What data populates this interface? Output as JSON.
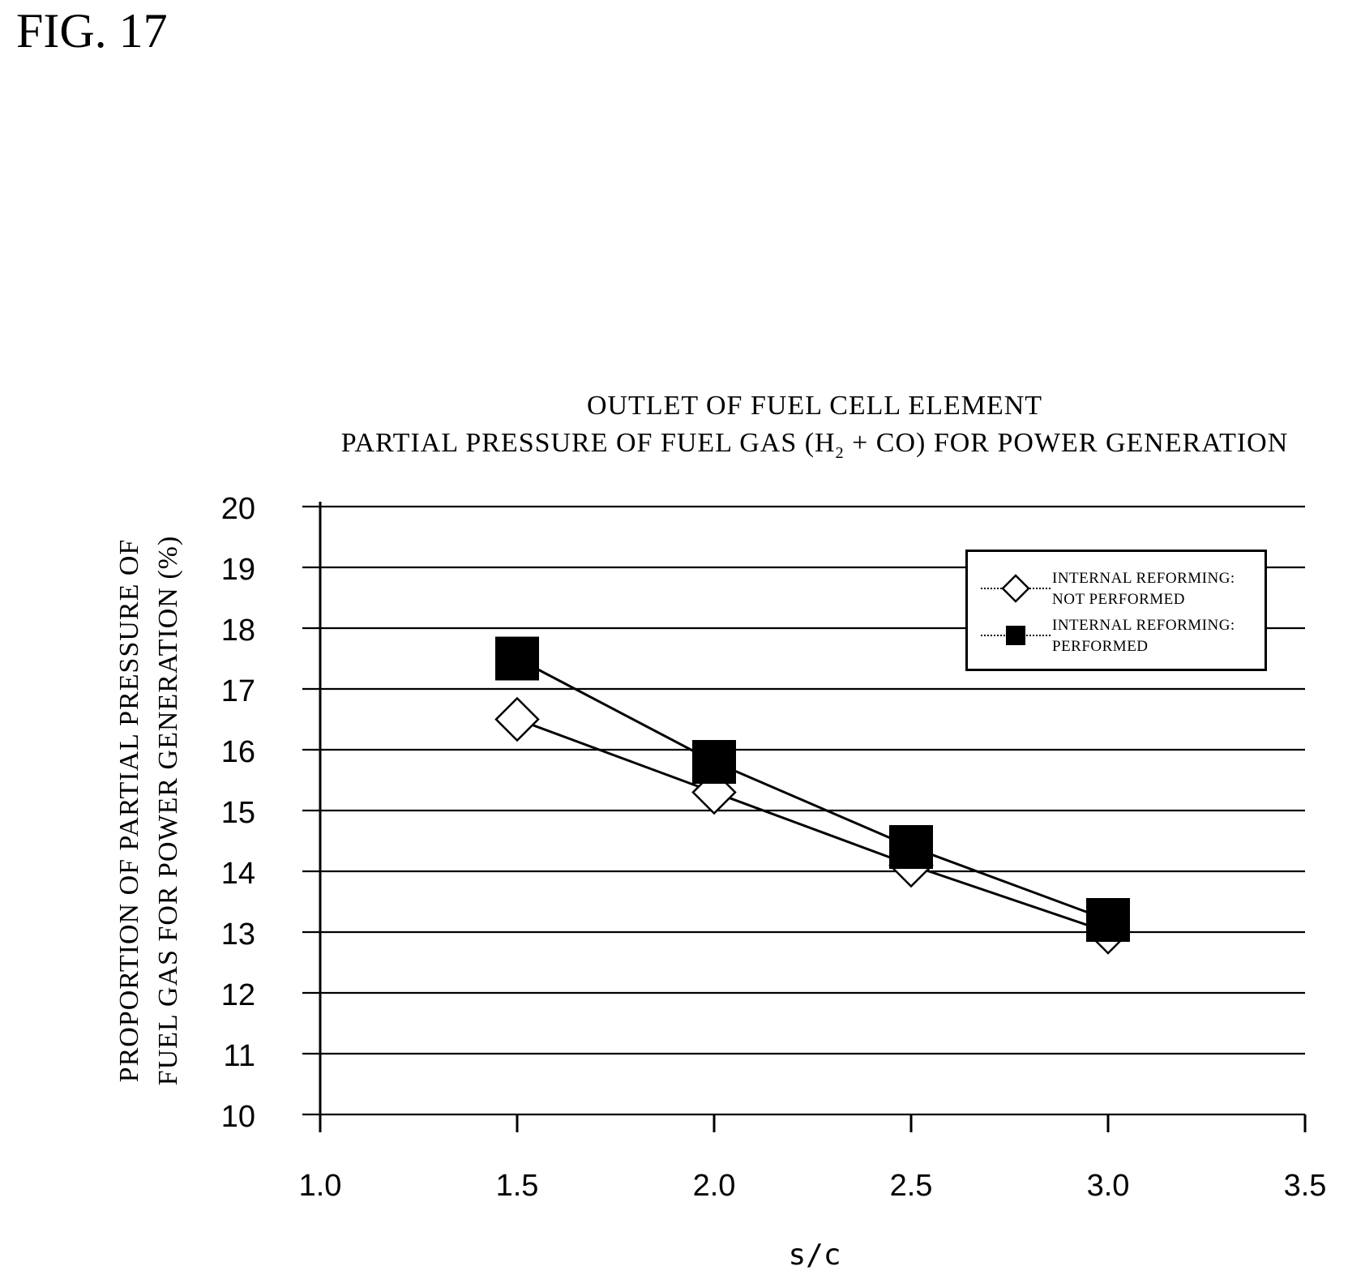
{
  "figure_label": "FIG. 17",
  "chart_data": {
    "type": "line",
    "title": "OUTLET OF FUEL CELL ELEMENT",
    "subtitle": {
      "prefix": "PARTIAL PRESSURE OF FUEL GAS (H",
      "subscript": "2",
      "suffix": " + CO) FOR POWER GENERATION"
    },
    "xlabel": "s/c",
    "ylabel_lines": [
      "PROPORTION OF PARTIAL PRESSURE OF",
      "FUEL GAS FOR POWER GENERATION (%)"
    ],
    "xlim": [
      1.0,
      3.5
    ],
    "ylim": [
      10,
      20
    ],
    "xticks": [
      "1.0",
      "1.5",
      "2.0",
      "2.5",
      "3.0",
      "3.5"
    ],
    "yticks": [
      "20",
      "19",
      "18",
      "17",
      "16",
      "15",
      "14",
      "13",
      "12",
      "11",
      "10"
    ],
    "grid": "horizontal",
    "legend_position": "top-right",
    "x": [
      1.5,
      2.0,
      2.5,
      3.0
    ],
    "series": [
      {
        "name_lines": [
          "INTERNAL REFORMING:",
          "NOT PERFORMED"
        ],
        "marker": "open-diamond",
        "values": [
          16.5,
          15.3,
          14.1,
          13.0
        ]
      },
      {
        "name_lines": [
          "INTERNAL REFORMING:",
          "PERFORMED"
        ],
        "marker": "filled-square",
        "values": [
          17.5,
          15.8,
          14.4,
          13.2
        ]
      }
    ]
  }
}
